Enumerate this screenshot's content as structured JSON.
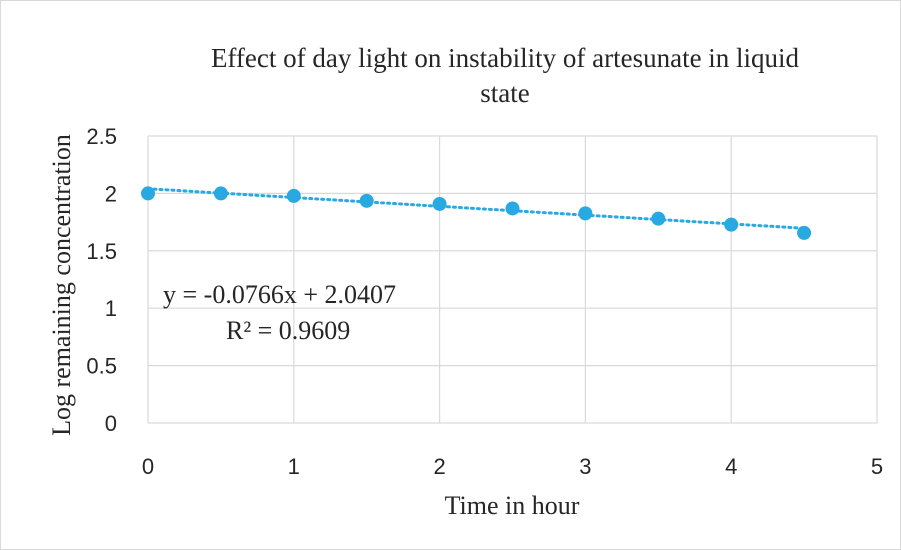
{
  "chart_data": {
    "type": "scatter",
    "title_line1": "Effect of day light on instability of artesunate in liquid",
    "title_line2": "state",
    "xlabel": "Time in hour",
    "ylabel": "Log  remaining concentration",
    "xlim": [
      0,
      5
    ],
    "ylim": [
      0,
      2.5
    ],
    "x_ticks": [
      "0",
      "1",
      "2",
      "3",
      "4",
      "5"
    ],
    "y_ticks": [
      "0",
      "0.5",
      "1",
      "1.5",
      "2",
      "2.5"
    ],
    "grid": true,
    "series": [
      {
        "x": [
          0,
          0.5,
          1,
          1.5,
          2,
          2.5,
          3,
          3.5,
          4,
          4.5
        ],
        "y": [
          2.0,
          2.0,
          1.978,
          1.935,
          1.908,
          1.869,
          1.826,
          1.78,
          1.728,
          1.656
        ],
        "color": "#29a9e1"
      }
    ],
    "trendline": {
      "style": "dotted",
      "slope": -0.0766,
      "intercept": 2.0407,
      "color": "#29a9e1",
      "equation": "y = -0.0766x + 2.0407",
      "r_squared": "R² = 0.9609"
    },
    "colors": {
      "grid": "#d9d9d9",
      "text": "#262626",
      "marker": "#29a9e1"
    }
  }
}
